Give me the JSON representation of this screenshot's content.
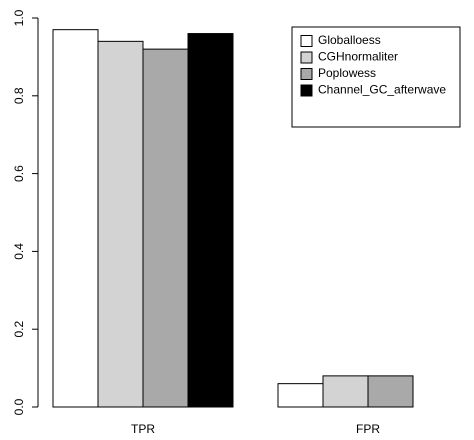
{
  "chart_data": {
    "type": "bar",
    "categories": [
      "TPR",
      "FPR"
    ],
    "series": [
      {
        "name": "Globalloess",
        "color": "#ffffff",
        "values": [
          0.97,
          0.06
        ]
      },
      {
        "name": "CGHnormaliter",
        "color": "#d3d3d3",
        "values": [
          0.94,
          0.08
        ]
      },
      {
        "name": "Poplowess",
        "color": "#a9a9a9",
        "values": [
          0.92,
          0.08
        ]
      },
      {
        "name": "Channel_GC_afterwave",
        "color": "#000000",
        "values": [
          0.96,
          0
        ]
      }
    ],
    "ylim": [
      0,
      1
    ],
    "yticks": [
      {
        "value": 0,
        "label": "0.0"
      },
      0.2,
      0.4,
      0.6,
      0.8,
      {
        "value": 1,
        "label": "1.0"
      }
    ],
    "legend": "top-right"
  }
}
